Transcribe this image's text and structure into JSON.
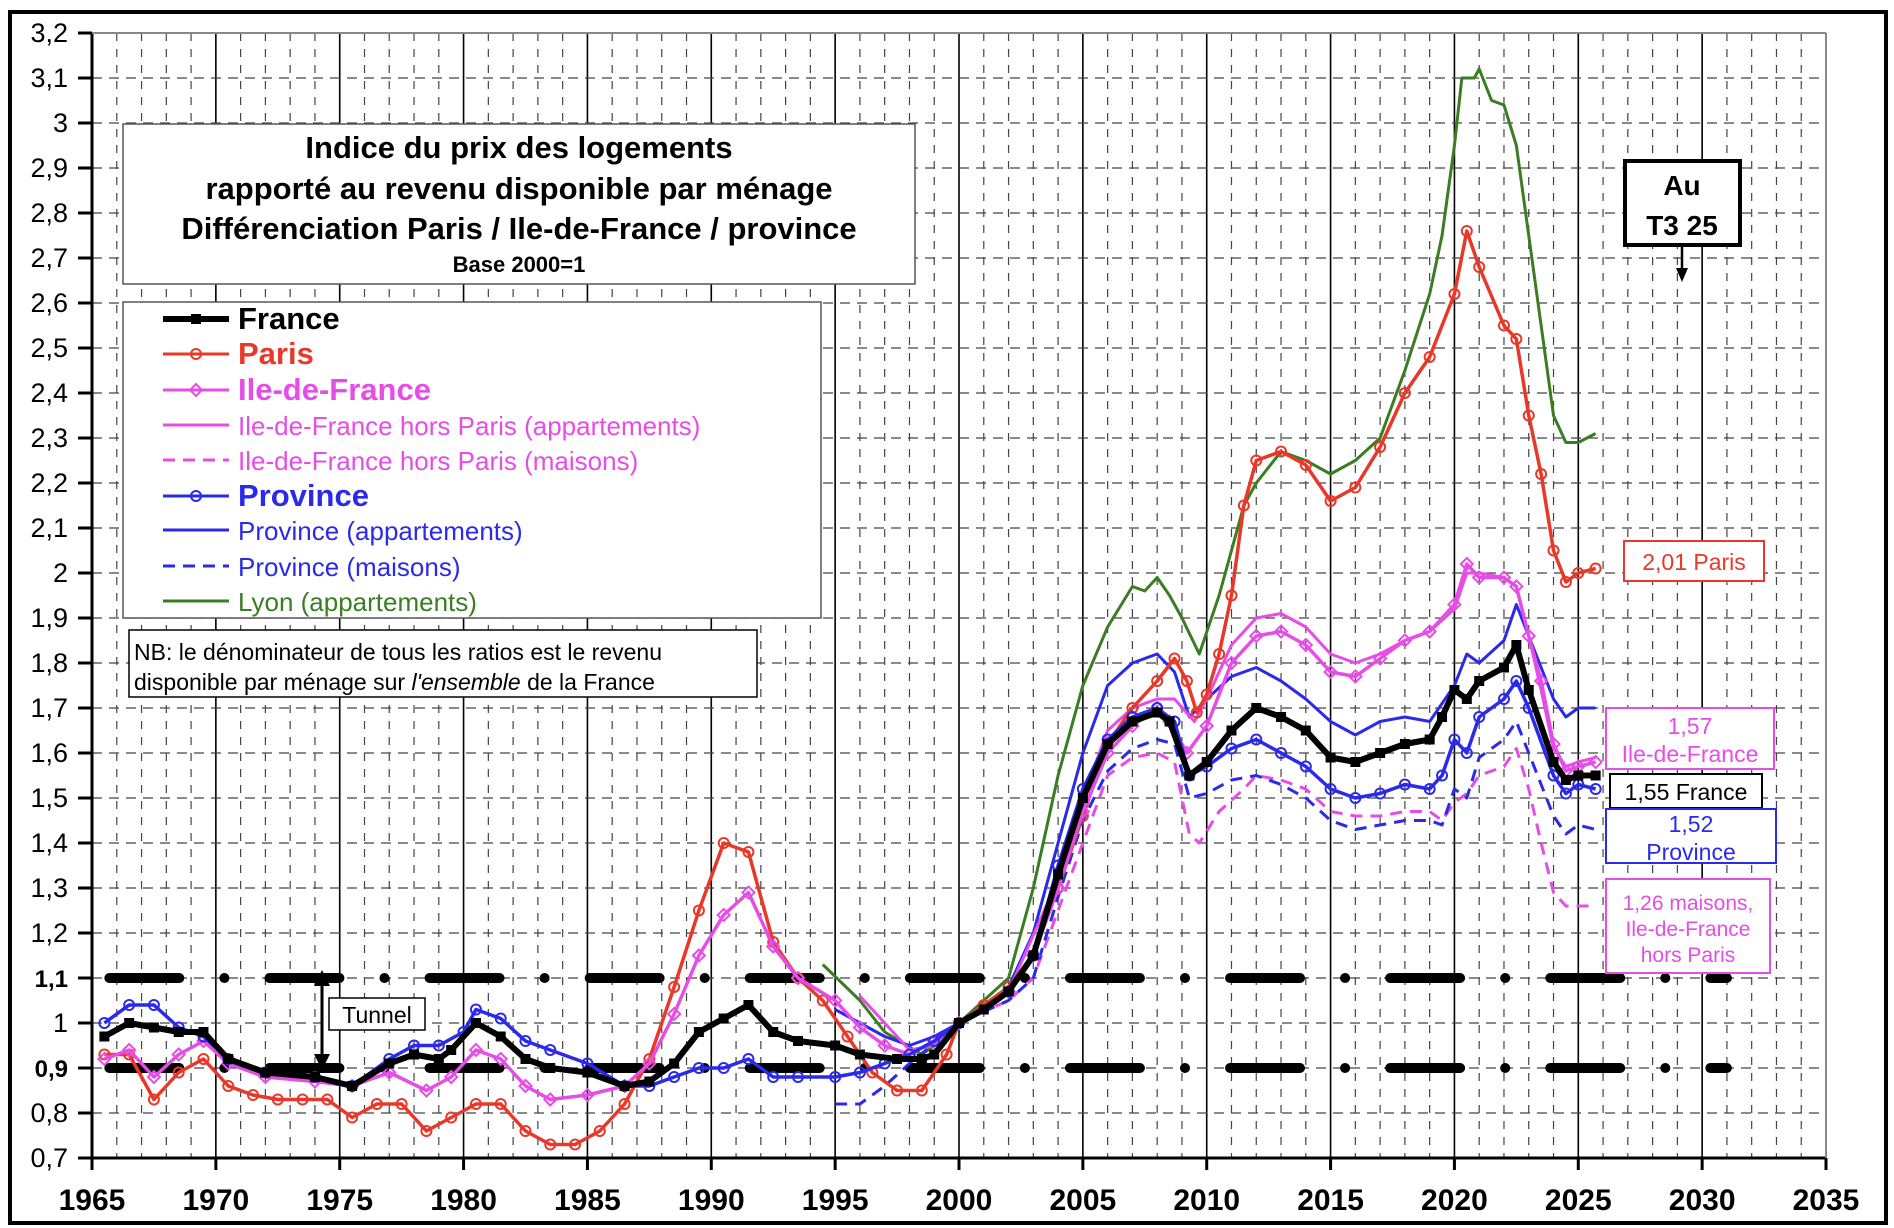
{
  "chart_data": {
    "type": "line",
    "title": "Indice du prix des logements",
    "title_lines": [
      "Indice du prix des logements",
      "rapporté au revenu disponible par ménage",
      "Différenciation Paris / Ile-de-France / province",
      "Base 2000=1"
    ],
    "xlim": [
      1965,
      2035
    ],
    "ylim": [
      0.7,
      3.2
    ],
    "x_ticks": [
      "1965",
      "1970",
      "1975",
      "1980",
      "1985",
      "1990",
      "1995",
      "2000",
      "2005",
      "2010",
      "2015",
      "2020",
      "2025",
      "2030",
      "2035"
    ],
    "y_ticks": [
      "0,7",
      "0,8",
      "0,9",
      "1",
      "1,1",
      "1,2",
      "1,3",
      "1,4",
      "1,5",
      "1,6",
      "1,7",
      "1,8",
      "1,9",
      "2",
      "2,1",
      "2,2",
      "2,3",
      "2,4",
      "2,5",
      "2,6",
      "2,7",
      "2,8",
      "2,9",
      "3",
      "3,1",
      "3,2"
    ],
    "grid": true,
    "legend_position": "top-left",
    "tunnel": {
      "lower": 0.9,
      "upper": 1.1,
      "label": "Tunnel"
    },
    "note": {
      "line1": "NB: le dénominateur de tous les ratios est le revenu",
      "line2_a": "disponible par ménage sur ",
      "line2_em": "l'ensemble",
      "line2_b": " de la France"
    },
    "period_box": {
      "line1": "Au",
      "line2": "T3 25"
    },
    "end_labels": {
      "paris": "2,01 Paris",
      "idf_1": "1,57",
      "idf_2": "Ile-de-France",
      "france": "1,55 France",
      "province_1": "1,52",
      "province_2": "Province",
      "maisons_1": "1,26 maisons,",
      "maisons_2": "Ile-de-France",
      "maisons_3": "hors Paris"
    },
    "series": [
      {
        "name": "France",
        "color": "#000000",
        "style": "bold-square",
        "x": [
          1965.5,
          1966.5,
          1967.5,
          1968.5,
          1969.5,
          1970.5,
          1972,
          1974,
          1975.5,
          1977,
          1978,
          1979,
          1979.5,
          1980.5,
          1981.5,
          1982.5,
          1983.5,
          1985,
          1986.5,
          1987.5,
          1988.5,
          1989.5,
          1990.5,
          1991.5,
          1992.5,
          1993.5,
          1995,
          1996,
          1997.5,
          1998.5,
          1999,
          2000,
          2001,
          2002,
          2003,
          2004,
          2005,
          2006,
          2007,
          2008,
          2008.5,
          2009.3,
          2010,
          2011,
          2012,
          2013,
          2014,
          2015,
          2016,
          2017,
          2018,
          2019,
          2019.5,
          2020,
          2020.5,
          2021,
          2022,
          2022.5,
          2023,
          2024,
          2024.5,
          2025,
          2025.7
        ],
        "y": [
          0.97,
          1.0,
          0.99,
          0.98,
          0.98,
          0.92,
          0.89,
          0.88,
          0.86,
          0.91,
          0.93,
          0.92,
          0.94,
          1.0,
          0.97,
          0.92,
          0.9,
          0.89,
          0.86,
          0.87,
          0.91,
          0.98,
          1.01,
          1.04,
          0.98,
          0.96,
          0.95,
          0.93,
          0.92,
          0.92,
          0.93,
          1.0,
          1.03,
          1.07,
          1.15,
          1.33,
          1.5,
          1.62,
          1.67,
          1.69,
          1.67,
          1.55,
          1.58,
          1.65,
          1.7,
          1.68,
          1.65,
          1.59,
          1.58,
          1.6,
          1.62,
          1.63,
          1.68,
          1.74,
          1.72,
          1.76,
          1.79,
          1.84,
          1.74,
          1.58,
          1.54,
          1.55,
          1.55
        ]
      },
      {
        "name": "Paris",
        "color": "#e8382a",
        "style": "bold-circle",
        "x": [
          1965.5,
          1966.5,
          1967.5,
          1968.5,
          1969.5,
          1970.5,
          1971.5,
          1972.5,
          1973.5,
          1974.5,
          1975.5,
          1976.5,
          1977.5,
          1978.5,
          1979.5,
          1980.5,
          1981.5,
          1982.5,
          1983.5,
          1984.5,
          1985.5,
          1986.5,
          1987.5,
          1988.5,
          1989.5,
          1990.5,
          1991.5,
          1992.5,
          1993.5,
          1994.5,
          1995.5,
          1996.5,
          1997.5,
          1998.5,
          1999.5,
          2000,
          2001,
          2002,
          2003,
          2004,
          2005,
          2006,
          2007,
          2008,
          2008.7,
          2009.2,
          2009.6,
          2010,
          2010.5,
          2011,
          2011.5,
          2012,
          2013,
          2014,
          2015,
          2016,
          2017,
          2018,
          2019,
          2020,
          2020.5,
          2021,
          2022,
          2022.5,
          2023,
          2023.5,
          2024,
          2024.5,
          2025,
          2025.7
        ],
        "y": [
          0.93,
          0.93,
          0.83,
          0.89,
          0.92,
          0.86,
          0.84,
          0.83,
          0.83,
          0.83,
          0.79,
          0.82,
          0.82,
          0.76,
          0.79,
          0.82,
          0.82,
          0.76,
          0.73,
          0.73,
          0.76,
          0.82,
          0.92,
          1.08,
          1.25,
          1.4,
          1.38,
          1.18,
          1.1,
          1.05,
          0.97,
          0.89,
          0.85,
          0.85,
          0.93,
          1.0,
          1.04,
          1.08,
          1.15,
          1.3,
          1.46,
          1.62,
          1.7,
          1.76,
          1.81,
          1.76,
          1.69,
          1.73,
          1.82,
          1.95,
          2.15,
          2.25,
          2.27,
          2.24,
          2.16,
          2.19,
          2.28,
          2.4,
          2.48,
          2.62,
          2.76,
          2.68,
          2.55,
          2.52,
          2.35,
          2.22,
          2.05,
          1.98,
          2.0,
          2.01
        ]
      },
      {
        "name": "Ile-de-France",
        "color": "#e64ce6",
        "style": "bold-diamond",
        "x": [
          1965.5,
          1966.5,
          1967.5,
          1968.5,
          1969.5,
          1970.5,
          1972,
          1974,
          1975.5,
          1977,
          1978.5,
          1979.5,
          1980.5,
          1981.5,
          1982.5,
          1983.5,
          1985,
          1986.5,
          1987.5,
          1988.5,
          1989.5,
          1990.5,
          1991.5,
          1992.5,
          1993.5,
          1995,
          1996,
          1997,
          1998,
          1999,
          2000,
          2002,
          2003,
          2004,
          2005,
          2006,
          2007,
          2008,
          2008.5,
          2009.2,
          2010,
          2011,
          2012,
          2013,
          2014,
          2015,
          2016,
          2017,
          2018,
          2019,
          2020,
          2020.5,
          2021,
          2022,
          2022.5,
          2023,
          2023.5,
          2024,
          2024.5,
          2025,
          2025.7
        ],
        "y": [
          0.92,
          0.94,
          0.88,
          0.93,
          0.96,
          0.91,
          0.88,
          0.87,
          0.86,
          0.89,
          0.85,
          0.88,
          0.94,
          0.92,
          0.86,
          0.83,
          0.84,
          0.86,
          0.91,
          1.02,
          1.15,
          1.24,
          1.29,
          1.17,
          1.1,
          1.05,
          0.99,
          0.95,
          0.93,
          0.96,
          1.0,
          1.07,
          1.15,
          1.3,
          1.47,
          1.6,
          1.66,
          1.7,
          1.67,
          1.6,
          1.66,
          1.8,
          1.86,
          1.87,
          1.84,
          1.78,
          1.77,
          1.81,
          1.85,
          1.87,
          1.93,
          2.02,
          1.99,
          1.99,
          1.97,
          1.86,
          1.76,
          1.62,
          1.56,
          1.57,
          1.58
        ]
      },
      {
        "name": "Ile-de-France hors Paris (appartements)",
        "color": "#e64ce6",
        "style": "solid",
        "x": [
          1996,
          1997,
          1998,
          1999,
          2000,
          2002,
          2004,
          2005,
          2006,
          2007,
          2008,
          2008.7,
          2009.5,
          2010,
          2011,
          2012,
          2013,
          2014,
          2015,
          2016,
          2017,
          2018,
          2019,
          2020,
          2020.5,
          2021,
          2022,
          2022.5,
          2023,
          2023.5,
          2024,
          2024.5,
          2025,
          2025.7
        ],
        "y": [
          1.06,
          1.0,
          0.94,
          0.95,
          1.0,
          1.07,
          1.32,
          1.5,
          1.65,
          1.7,
          1.72,
          1.72,
          1.67,
          1.72,
          1.84,
          1.9,
          1.91,
          1.88,
          1.82,
          1.8,
          1.82,
          1.85,
          1.87,
          1.92,
          2.0,
          2.0,
          1.99,
          1.97,
          1.86,
          1.74,
          1.61,
          1.57,
          1.58,
          1.59
        ]
      },
      {
        "name": "Ile-de-France hors Paris (maisons)",
        "color": "#e64ce6",
        "style": "dashed",
        "x": [
          2000,
          2002,
          2003,
          2004,
          2005,
          2006,
          2007,
          2008,
          2008.7,
          2009.3,
          2009.7,
          2010.5,
          2011.5,
          2012,
          2013,
          2014,
          2015,
          2016,
          2017,
          2018,
          2019,
          2019.5,
          2020,
          2020.5,
          2021,
          2022,
          2022.5,
          2023,
          2023.5,
          2024,
          2024.5,
          2025,
          2025.7
        ],
        "y": [
          1.0,
          1.05,
          1.1,
          1.25,
          1.4,
          1.55,
          1.59,
          1.6,
          1.58,
          1.42,
          1.4,
          1.47,
          1.52,
          1.55,
          1.54,
          1.52,
          1.47,
          1.46,
          1.46,
          1.47,
          1.47,
          1.45,
          1.49,
          1.51,
          1.55,
          1.57,
          1.61,
          1.52,
          1.4,
          1.29,
          1.26,
          1.26,
          1.26
        ]
      },
      {
        "name": "Province",
        "color": "#2a2ae8",
        "style": "bold-circle",
        "x": [
          1965.5,
          1966.5,
          1967.5,
          1968.5,
          1969.5,
          1970.5,
          1972,
          1974,
          1975.5,
          1977,
          1978,
          1979,
          1980,
          1980.5,
          1981.5,
          1982.5,
          1983.5,
          1985,
          1986.5,
          1987.5,
          1988.5,
          1989.5,
          1990.5,
          1991.5,
          1992.5,
          1993.5,
          1995,
          1996,
          1997,
          1998,
          1999,
          2000,
          2002,
          2003,
          2004,
          2005,
          2006,
          2007,
          2008,
          2008.7,
          2009.3,
          2010,
          2011,
          2012,
          2013,
          2014,
          2015,
          2016,
          2017,
          2018,
          2019,
          2019.5,
          2020,
          2020.5,
          2021,
          2022,
          2022.5,
          2023,
          2024,
          2024.5,
          2025,
          2025.7
        ],
        "y": [
          1.0,
          1.04,
          1.04,
          0.99,
          0.97,
          0.92,
          0.89,
          0.88,
          0.86,
          0.92,
          0.95,
          0.95,
          0.98,
          1.03,
          1.01,
          0.96,
          0.94,
          0.91,
          0.86,
          0.86,
          0.88,
          0.9,
          0.9,
          0.92,
          0.88,
          0.88,
          0.88,
          0.89,
          0.91,
          0.93,
          0.96,
          1.0,
          1.07,
          1.15,
          1.35,
          1.52,
          1.63,
          1.68,
          1.7,
          1.67,
          1.55,
          1.57,
          1.61,
          1.63,
          1.6,
          1.57,
          1.52,
          1.5,
          1.51,
          1.53,
          1.52,
          1.55,
          1.63,
          1.6,
          1.68,
          1.72,
          1.76,
          1.7,
          1.55,
          1.51,
          1.53,
          1.52
        ]
      },
      {
        "name": "Province (appartements)",
        "color": "#2a2ae8",
        "style": "solid",
        "x": [
          1995,
          1996,
          1997,
          1998,
          1999,
          2000,
          2002,
          2003,
          2004,
          2005,
          2006,
          2007,
          2008,
          2008.7,
          2009.3,
          2010,
          2011,
          2012,
          2013,
          2014,
          2015,
          2016,
          2017,
          2018,
          2019,
          2020,
          2020.5,
          2021,
          2022,
          2022.5,
          2023,
          2024,
          2024.5,
          2025,
          2025.7
        ],
        "y": [
          1.03,
          1.0,
          0.97,
          0.95,
          0.97,
          1.0,
          1.08,
          1.2,
          1.4,
          1.6,
          1.75,
          1.8,
          1.82,
          1.78,
          1.68,
          1.72,
          1.77,
          1.79,
          1.76,
          1.72,
          1.67,
          1.64,
          1.67,
          1.68,
          1.67,
          1.75,
          1.82,
          1.8,
          1.85,
          1.93,
          1.86,
          1.72,
          1.68,
          1.7,
          1.7
        ]
      },
      {
        "name": "Province (maisons)",
        "color": "#2a2ae8",
        "style": "dashed",
        "x": [
          1995,
          1996,
          1997,
          1998,
          2000,
          2002,
          2003,
          2004,
          2005,
          2006,
          2007,
          2008,
          2008.7,
          2009.3,
          2010,
          2011,
          2012,
          2013,
          2014,
          2015,
          2016,
          2017,
          2018,
          2019,
          2019.5,
          2020,
          2020.5,
          2021,
          2022,
          2022.5,
          2023,
          2024,
          2024.5,
          2025,
          2025.7
        ],
        "y": [
          0.82,
          0.82,
          0.86,
          0.91,
          1.0,
          1.05,
          1.1,
          1.28,
          1.45,
          1.56,
          1.61,
          1.63,
          1.62,
          1.5,
          1.51,
          1.54,
          1.55,
          1.53,
          1.5,
          1.45,
          1.43,
          1.44,
          1.45,
          1.45,
          1.44,
          1.52,
          1.5,
          1.59,
          1.63,
          1.67,
          1.6,
          1.46,
          1.42,
          1.44,
          1.43
        ]
      },
      {
        "name": "Lyon (appartements)",
        "color": "#3a7d22",
        "style": "solid",
        "x": [
          1994.5,
          1996,
          1997,
          1998.5,
          1999,
          2000,
          2001,
          2002,
          2003,
          2004,
          2005,
          2006,
          2007,
          2007.5,
          2008,
          2008.5,
          2009,
          2009.7,
          2010.5,
          2011,
          2011.5,
          2012,
          2013,
          2014,
          2015,
          2016,
          2017,
          2018,
          2019,
          2019.5,
          2020,
          2020.3,
          2020.8,
          2021,
          2021.5,
          2022,
          2022.5,
          2023,
          2023.5,
          2024,
          2024.5,
          2025,
          2025.7
        ],
        "y": [
          1.13,
          1.05,
          0.98,
          0.93,
          0.95,
          1.0,
          1.05,
          1.1,
          1.3,
          1.55,
          1.75,
          1.88,
          1.97,
          1.96,
          1.99,
          1.95,
          1.9,
          1.82,
          1.95,
          2.05,
          2.15,
          2.2,
          2.27,
          2.25,
          2.22,
          2.25,
          2.3,
          2.45,
          2.62,
          2.75,
          2.95,
          3.1,
          3.1,
          3.12,
          3.05,
          3.04,
          2.95,
          2.75,
          2.55,
          2.35,
          2.29,
          2.29,
          2.31
        ]
      }
    ]
  }
}
